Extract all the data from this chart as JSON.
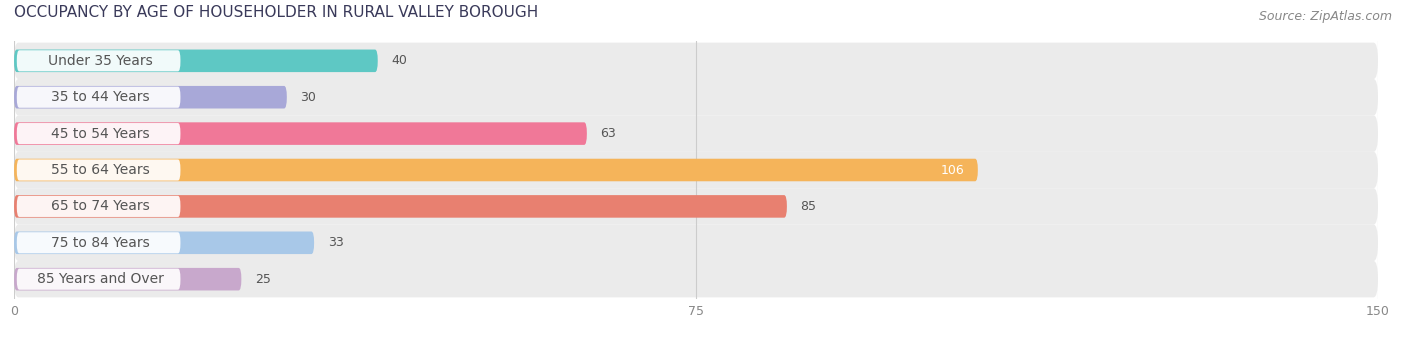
{
  "title": "OCCUPANCY BY AGE OF HOUSEHOLDER IN RURAL VALLEY BOROUGH",
  "source": "Source: ZipAtlas.com",
  "categories": [
    "Under 35 Years",
    "35 to 44 Years",
    "45 to 54 Years",
    "55 to 64 Years",
    "65 to 74 Years",
    "75 to 84 Years",
    "85 Years and Over"
  ],
  "values": [
    40,
    30,
    63,
    106,
    85,
    33,
    25
  ],
  "bar_colors": [
    "#5ec8c4",
    "#a8a8d8",
    "#f07898",
    "#f5b45a",
    "#e88070",
    "#a8c8e8",
    "#c8a8cc"
  ],
  "xlim": [
    0,
    150
  ],
  "xticks": [
    0,
    75,
    150
  ],
  "title_fontsize": 11,
  "source_fontsize": 9,
  "label_fontsize": 10,
  "value_fontsize": 9,
  "background_color": "#ffffff",
  "bar_height": 0.62,
  "row_bg_color": "#ebebeb",
  "label_pill_color": "#ffffff",
  "label_text_color": "#555555",
  "value_inside_color": "#ffffff",
  "value_outside_color": "#555555"
}
